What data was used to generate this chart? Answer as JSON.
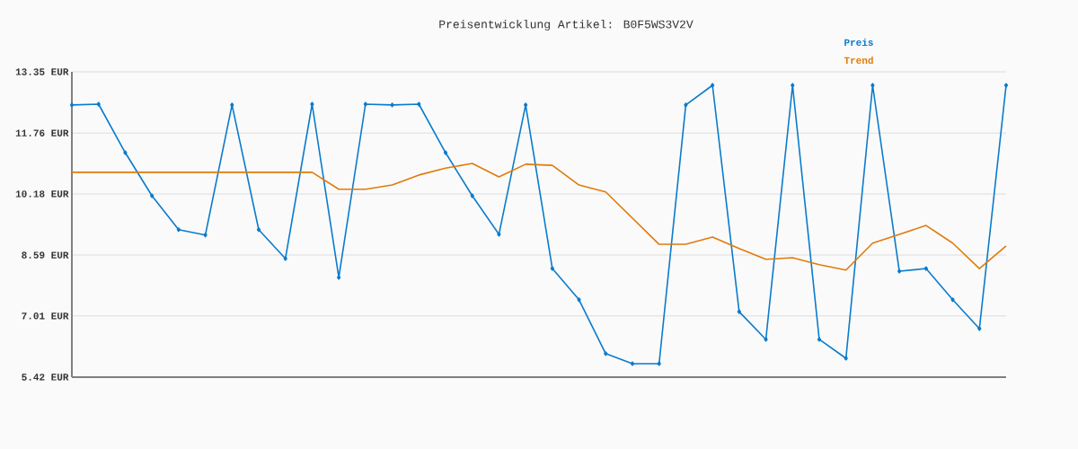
{
  "chart_data": {
    "type": "line",
    "title": "Preisentwicklung Artikel: B0F5WS3V2V",
    "categories": [
      null,
      null,
      null,
      null,
      null,
      null,
      null,
      null,
      null,
      null,
      null,
      null,
      null,
      null,
      null,
      null,
      null,
      null,
      null,
      null,
      null,
      null,
      null,
      null,
      null,
      null,
      null,
      null,
      null,
      null,
      null,
      null,
      null,
      null,
      null,
      null
    ],
    "series": [
      {
        "name": "Preis",
        "color": "#0a7bcc",
        "marker": "diamond",
        "values": [
          12.49,
          12.51,
          11.25,
          10.13,
          9.25,
          9.11,
          12.49,
          9.25,
          8.5,
          12.51,
          8.01,
          12.51,
          12.49,
          12.51,
          11.25,
          10.13,
          9.13,
          12.49,
          8.24,
          7.43,
          6.03,
          5.77,
          5.77,
          12.49,
          13.0,
          7.12,
          6.4,
          13.0,
          6.4,
          5.91,
          13.0,
          8.17,
          8.24,
          7.43,
          6.68,
          13.0
        ]
      },
      {
        "name": "Trend",
        "color": "#e07b0a",
        "marker": "none",
        "values": [
          10.74,
          10.74,
          10.74,
          10.74,
          10.74,
          10.74,
          10.74,
          10.74,
          10.74,
          10.74,
          10.3,
          10.3,
          10.41,
          10.67,
          10.85,
          10.97,
          10.62,
          10.95,
          10.92,
          10.41,
          10.23,
          9.55,
          8.87,
          8.87,
          9.06,
          8.76,
          8.48,
          8.52,
          8.34,
          8.2,
          8.9,
          9.13,
          9.36,
          8.9,
          8.24,
          8.83
        ]
      }
    ],
    "ylim": [
      5.42,
      13.35
    ],
    "yticks": [
      {
        "value": 5.42,
        "label": "5.42 EUR"
      },
      {
        "value": 7.01,
        "label": "7.01 EUR"
      },
      {
        "value": 8.59,
        "label": "8.59 EUR"
      },
      {
        "value": 10.18,
        "label": "10.18 EUR"
      },
      {
        "value": 11.76,
        "label": "11.76 EUR"
      },
      {
        "value": 13.35,
        "label": "13.35 EUR"
      }
    ],
    "grid": "y",
    "legend": "top right",
    "tick_labels": "y",
    "line_style": "solid"
  }
}
